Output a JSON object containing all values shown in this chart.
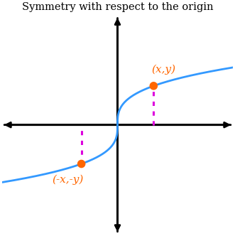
{
  "title": "Symmetry with respect to the origin",
  "title_color": "#000000",
  "title_fontsize": 10.5,
  "curve_color": "#3399ff",
  "curve_lw": 2.0,
  "point_color": "#ff6600",
  "point_size": 70,
  "dotted_color": "#dd00dd",
  "dotted_lw": 2.2,
  "axis_color": "black",
  "axis_lw": 2.0,
  "xlim": [
    -3.2,
    3.2
  ],
  "ylim": [
    -2.8,
    2.8
  ],
  "point_x": 1.0,
  "point_y": 1.0,
  "label_xy": "(x,y)",
  "label_neg": "(-x,-y)",
  "label_fontsize": 11,
  "background_color": "#ffffff"
}
